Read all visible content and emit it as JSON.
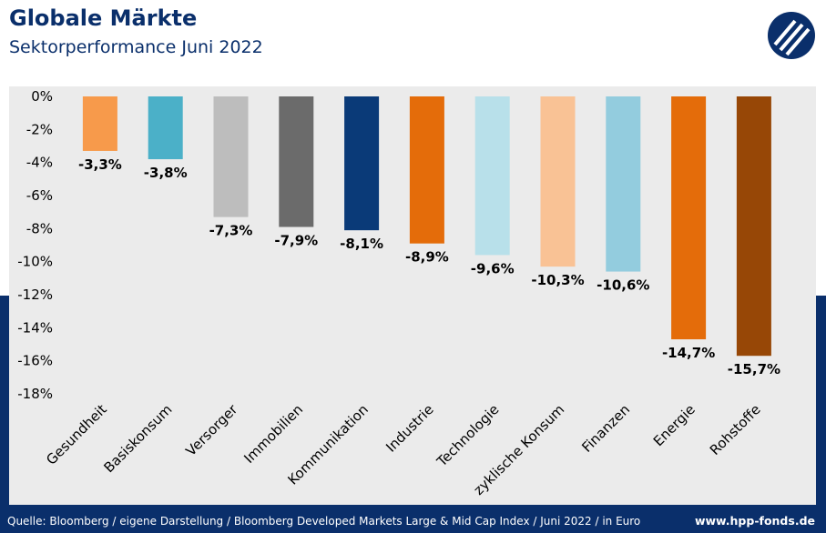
{
  "header": {
    "title": "Globale Märkte",
    "subtitle": "Sektorperformance Juni 2022"
  },
  "footer": {
    "source": "Quelle: Bloomberg / eigene Darstellung / Bloomberg Developed Markets Large & Mid Cap Index / Juni 2022 / in Euro",
    "url": "www.hpp-fonds.de"
  },
  "colors": {
    "brand_navy": "#0a2f6b",
    "panel_bg": "#ebebeb"
  },
  "chart_data": {
    "type": "bar",
    "title": "",
    "xlabel": "",
    "ylabel": "",
    "ylim": [
      -18,
      0
    ],
    "yticks": [
      0,
      -2,
      -4,
      -6,
      -8,
      -10,
      -12,
      -14,
      -16,
      -18
    ],
    "ytick_labels": [
      "0%",
      "-2%",
      "-4%",
      "-6%",
      "-8%",
      "-10%",
      "-12%",
      "-14%",
      "-16%",
      "-18%"
    ],
    "grid": false,
    "categories": [
      "Gesundheit",
      "Basiskonsum",
      "Versorger",
      "Immobilien",
      "Kommunikation",
      "Industrie",
      "Technologie",
      "zyklische Konsum",
      "Finanzen",
      "Energie",
      "Rohstoffe"
    ],
    "values": [
      -3.3,
      -3.8,
      -7.3,
      -7.9,
      -8.1,
      -8.9,
      -9.6,
      -10.3,
      -10.6,
      -14.7,
      -15.7
    ],
    "value_labels": [
      "-3,3%",
      "-3,8%",
      "-7,3%",
      "-7,9%",
      "-8,1%",
      "-8,9%",
      "-9,6%",
      "-10,3%",
      "-10,6%",
      "-14,7%",
      "-15,7%"
    ],
    "bar_colors": [
      "#f79a4b",
      "#4bb0c8",
      "#bdbdbd",
      "#6b6b6b",
      "#0a3a78",
      "#e46c0a",
      "#b8e0ea",
      "#f9c295",
      "#93ccde",
      "#e46c0a",
      "#974706"
    ]
  }
}
